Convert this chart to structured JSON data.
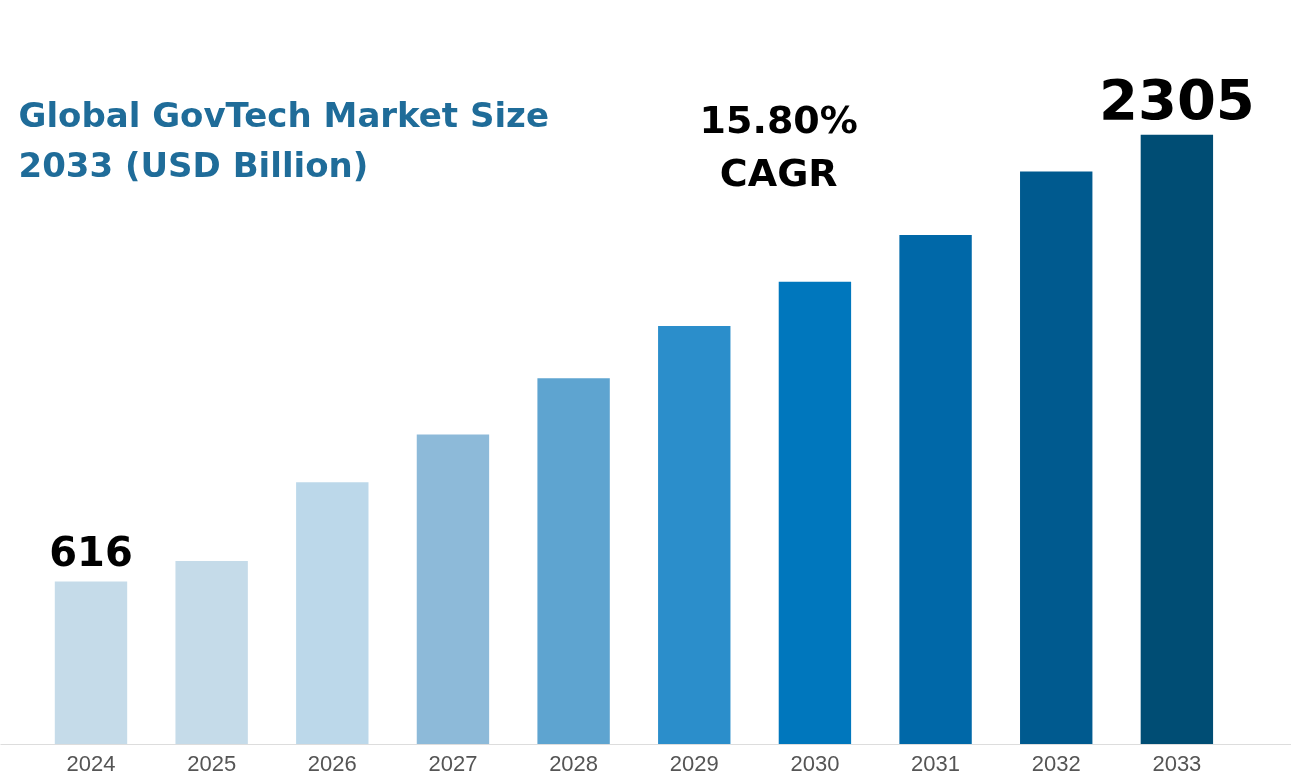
{
  "chart_data": {
    "type": "bar",
    "title": "Global GovTech Market Size\n2033 (USD Billion)",
    "categories": [
      "2024",
      "2025",
      "2026",
      "2027",
      "2028",
      "2029",
      "2030",
      "2031",
      "2032",
      "2033"
    ],
    "values": [
      616,
      694,
      991,
      1172,
      1384,
      1582,
      1749,
      1926,
      2166,
      2305
    ],
    "colors": [
      "#c5dbe9",
      "#c5dbe9",
      "#bcd8ea",
      "#8dbad9",
      "#5ea4d0",
      "#2b8ecb",
      "#0077bd",
      "#0068a8",
      "#005a8f",
      "#004d74"
    ],
    "value_labels": [
      "616",
      null,
      null,
      null,
      null,
      null,
      null,
      null,
      null,
      "2305"
    ],
    "annotations": [
      "15.80%\nCAGR"
    ],
    "grid": false
  }
}
